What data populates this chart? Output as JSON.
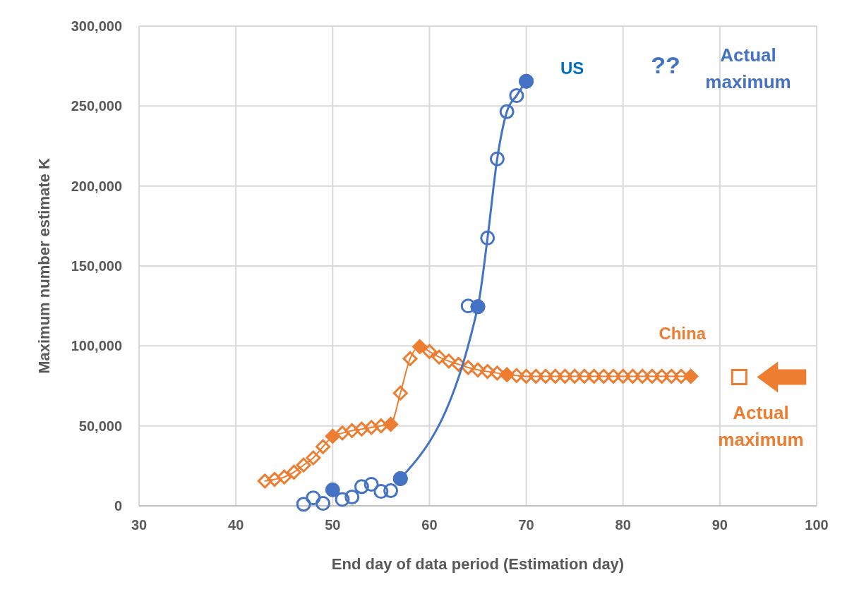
{
  "chart_data": {
    "type": "line",
    "xlabel": "End day of data period (Estimation day)",
    "ylabel": "Maximum number estimate K",
    "xlim": [
      30,
      100
    ],
    "xticks": [
      30,
      40,
      50,
      60,
      70,
      80,
      90,
      100
    ],
    "ylim": [
      0,
      300000
    ],
    "yticks": [
      {
        "value": 0,
        "label": "0"
      },
      {
        "value": 50000,
        "label": "50,000"
      },
      {
        "value": 100000,
        "label": "100,000"
      },
      {
        "value": 150000,
        "label": "150,000"
      },
      {
        "value": 200000,
        "label": "200,000"
      },
      {
        "value": 250000,
        "label": "250,000"
      },
      {
        "value": 300000,
        "label": "300,000"
      }
    ],
    "grid": true,
    "series": [
      {
        "name": "China",
        "color": "#ed7d31",
        "marker": "diamond",
        "line_style": "solid",
        "x": [
          43,
          44,
          45,
          46,
          47,
          48,
          49,
          50,
          51,
          52,
          53,
          54,
          55,
          56,
          57,
          58,
          59,
          60,
          61,
          62,
          63,
          64,
          65,
          66,
          67,
          68,
          69,
          70,
          71,
          72,
          73,
          74,
          75,
          76,
          77,
          78,
          79,
          80,
          81,
          82,
          83,
          84,
          85,
          86,
          87
        ],
        "values": [
          15500,
          16500,
          18000,
          21000,
          25500,
          30000,
          37000,
          43500,
          45500,
          47000,
          48000,
          49000,
          50000,
          51000,
          70500,
          92000,
          99500,
          96500,
          93000,
          90500,
          88500,
          86500,
          85000,
          84000,
          83000,
          82000,
          81500,
          81000,
          81000,
          81000,
          81000,
          81000,
          81000,
          81000,
          81000,
          81000,
          81000,
          81000,
          81000,
          81000,
          81000,
          81000,
          81000,
          81000,
          81000
        ]
      },
      {
        "type": "scatter",
        "colors": [
          "#ed7d31",
          "#ed7d31",
          "#ed7d31",
          "#ed7d31",
          "#ed7d31"
        ],
        "marker": "diamond",
        "x": [
          50,
          56,
          59,
          68,
          87
        ],
        "values": [
          43500,
          51000,
          99500,
          82000,
          81000
        ]
      },
      {
        "type": "scatter",
        "color": "#ed7d31",
        "marker": "square",
        "x": [
          92
        ],
        "values": [
          80500
        ]
      },
      {
        "name": "US",
        "type": "line",
        "color": "#4472c4",
        "marker": "circle",
        "line_style": "solid",
        "x": [
          57,
          65,
          66,
          67,
          68,
          69,
          70
        ],
        "values": [
          17000,
          124500,
          167500,
          217000,
          246500,
          256500,
          265500
        ]
      },
      {
        "type": "scatter",
        "color": "#4472c4",
        "marker": "circle",
        "x": [
          47,
          48,
          49,
          51,
          52,
          53,
          54,
          55,
          56,
          64
        ],
        "values": [
          1000,
          5000,
          1500,
          4000,
          5500,
          12000,
          13500,
          9000,
          9500,
          125000
        ]
      },
      {
        "type": "scatter",
        "colors": [
          "#4472c4",
          "#4472c4",
          "#4472c4",
          "#4472c4"
        ],
        "marker": "circle",
        "x": [
          50,
          57,
          65,
          70
        ],
        "values": [
          10000,
          17000,
          124500,
          265500
        ]
      }
    ],
    "annotations": [
      "??",
      "Actual maximum",
      "Actual maximum"
    ]
  }
}
